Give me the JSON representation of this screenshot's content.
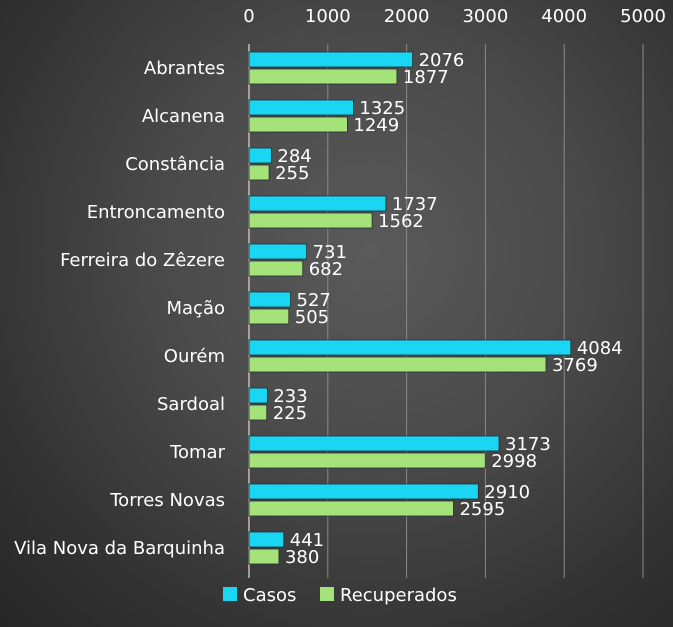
{
  "chart_data": {
    "type": "bar",
    "orientation": "horizontal",
    "categories": [
      "Abrantes",
      "Alcanena",
      "Constância",
      "Entroncamento",
      "Ferreira do Zêzere",
      "Mação",
      "Ourém",
      "Sardoal",
      "Tomar",
      "Torres Novas",
      "Vila Nova da Barquinha"
    ],
    "series": [
      {
        "name": "Casos",
        "color": "#1ad6f2",
        "values": [
          2076,
          1325,
          284,
          1737,
          731,
          527,
          4084,
          233,
          3173,
          2910,
          441
        ]
      },
      {
        "name": "Recuperados",
        "color": "#a4e27a",
        "values": [
          1877,
          1249,
          255,
          1562,
          682,
          505,
          3769,
          225,
          2998,
          2595,
          380
        ]
      }
    ],
    "xlim": [
      0,
      5000
    ],
    "xticks": [
      "0",
      "1000",
      "2000",
      "3000",
      "4000",
      "5000"
    ],
    "axis_position": "top",
    "grid": true,
    "legend_position": "bottom",
    "data_labels": true
  }
}
